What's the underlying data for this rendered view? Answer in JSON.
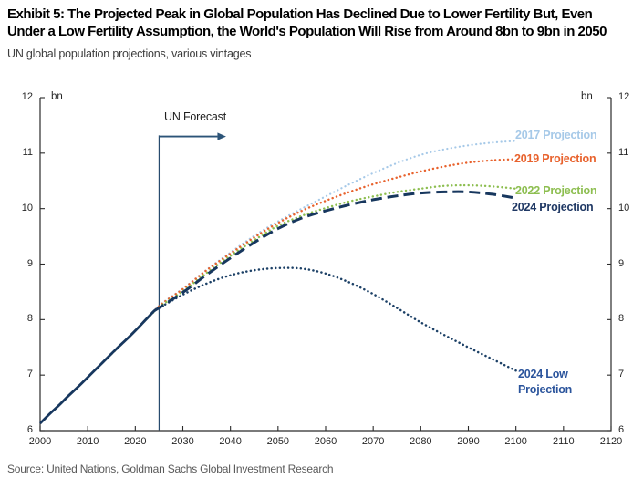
{
  "header": {
    "title_line1": "Exhibit 5: The Projected Peak in Global Population Has Declined Due to Lower Fertility But, Even",
    "title_line2": "Under a Low Fertility Assumption, the World's Population Will Rise from Around 8bn to 9bn in 2050",
    "subtitle": "UN global population projections, various vintages"
  },
  "footer": {
    "source": "Source: United Nations, Goldman Sachs Global Investment Research"
  },
  "chart_data": {
    "type": "line",
    "title": "UN global population projections, various vintages",
    "unit_label": "bn",
    "xlabel": "",
    "ylabel": "bn",
    "xlim": [
      2000,
      2120
    ],
    "ylim": [
      6,
      12
    ],
    "x_ticks": [
      2000,
      2010,
      2020,
      2030,
      2040,
      2050,
      2060,
      2070,
      2080,
      2090,
      2100,
      2110,
      2120
    ],
    "y_ticks": [
      6,
      7,
      8,
      9,
      10,
      11,
      12
    ],
    "grid": false,
    "legend_position": "inline-right",
    "axis_color": "#2b2b2b",
    "annotation": {
      "text": "UN Forecast",
      "x_year": 2025,
      "arrow_end_year": 2039,
      "arrow_y_value": 11.3,
      "line_top_value": 11.32,
      "color": "#2C5478"
    },
    "series": [
      {
        "id": "historical",
        "label": null,
        "style": "solid",
        "color": "#17375E",
        "x": [
          2000,
          2002,
          2004,
          2006,
          2008,
          2010,
          2012,
          2014,
          2016,
          2018,
          2020,
          2022,
          2024
        ],
        "values": [
          6.13,
          6.3,
          6.46,
          6.63,
          6.79,
          6.96,
          7.13,
          7.3,
          7.47,
          7.63,
          7.8,
          7.98,
          8.16
        ]
      },
      {
        "id": "proj2017",
        "label": "2017 Projection",
        "style": "dotted",
        "color": "#A6C9E8",
        "x": [
          2015,
          2020,
          2025,
          2030,
          2035,
          2040,
          2045,
          2050,
          2055,
          2060,
          2065,
          2070,
          2075,
          2080,
          2085,
          2090,
          2095,
          2100
        ],
        "values": [
          7.38,
          7.8,
          8.25,
          8.56,
          8.9,
          9.21,
          9.51,
          9.77,
          10.0,
          10.22,
          10.44,
          10.64,
          10.82,
          10.97,
          11.07,
          11.14,
          11.19,
          11.22
        ]
      },
      {
        "id": "proj2019",
        "label": "2019 Projection",
        "style": "dotted",
        "color": "#E8622D",
        "x": [
          2015,
          2020,
          2025,
          2030,
          2035,
          2040,
          2045,
          2050,
          2055,
          2060,
          2065,
          2070,
          2075,
          2080,
          2085,
          2090,
          2095,
          2100
        ],
        "values": [
          7.38,
          7.8,
          8.24,
          8.55,
          8.89,
          9.19,
          9.48,
          9.74,
          9.96,
          10.14,
          10.3,
          10.44,
          10.56,
          10.67,
          10.76,
          10.83,
          10.87,
          10.89
        ]
      },
      {
        "id": "proj2022",
        "label": "2022 Projection",
        "style": "dotted",
        "color": "#8DBE50",
        "x": [
          2015,
          2020,
          2025,
          2030,
          2035,
          2040,
          2045,
          2050,
          2055,
          2060,
          2065,
          2070,
          2075,
          2080,
          2085,
          2090,
          2095,
          2100
        ],
        "values": [
          7.38,
          7.8,
          8.22,
          8.51,
          8.84,
          9.15,
          9.43,
          9.69,
          9.87,
          10.01,
          10.13,
          10.22,
          10.3,
          10.36,
          10.41,
          10.42,
          10.4,
          10.36
        ]
      },
      {
        "id": "proj2024",
        "label": "2024 Projection",
        "style": "dashed",
        "color": "#17375E",
        "label_color": "#1F3864",
        "x": [
          2024,
          2030,
          2035,
          2040,
          2045,
          2050,
          2055,
          2060,
          2065,
          2070,
          2075,
          2080,
          2085,
          2090,
          2095,
          2100
        ],
        "values": [
          8.16,
          8.49,
          8.81,
          9.11,
          9.39,
          9.64,
          9.83,
          9.96,
          10.07,
          10.16,
          10.23,
          10.28,
          10.3,
          10.3,
          10.26,
          10.19
        ]
      },
      {
        "id": "proj2024low",
        "label": "2024 Low\nProjection",
        "style": "dotted",
        "color": "#1C4066",
        "label_color": "#2B549C",
        "x": [
          2024,
          2030,
          2035,
          2040,
          2045,
          2050,
          2055,
          2060,
          2065,
          2070,
          2075,
          2080,
          2085,
          2090,
          2095,
          2100
        ],
        "values": [
          8.16,
          8.45,
          8.65,
          8.8,
          8.89,
          8.93,
          8.92,
          8.83,
          8.67,
          8.46,
          8.21,
          7.95,
          7.72,
          7.5,
          7.29,
          7.08
        ]
      }
    ]
  }
}
